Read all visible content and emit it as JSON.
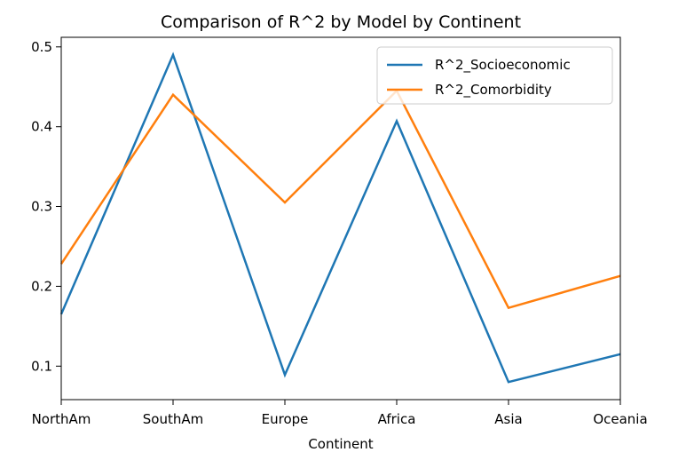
{
  "chart_data": {
    "type": "line",
    "title": "Comparison of R^2 by Model by Continent",
    "xlabel": "Continent",
    "ylabel": "",
    "categories": [
      "NorthAm",
      "SouthAm",
      "Europe",
      "Africa",
      "Asia",
      "Oceania"
    ],
    "ylim": [
      0.058,
      0.512
    ],
    "yticks": [
      0.1,
      0.2,
      0.3,
      0.4,
      0.5
    ],
    "ytick_labels": [
      "0.1",
      "0.2",
      "0.3",
      "0.4",
      "0.5"
    ],
    "grid": false,
    "legend_position": "top-right",
    "series": [
      {
        "name": "R^2_Socioeconomic",
        "color": "#1f77b4",
        "values": [
          0.165,
          0.49,
          0.089,
          0.407,
          0.08,
          0.115
        ]
      },
      {
        "name": "R^2_Comorbidity",
        "color": "#ff7f0e",
        "values": [
          0.228,
          0.44,
          0.305,
          0.445,
          0.173,
          0.213
        ]
      }
    ]
  }
}
